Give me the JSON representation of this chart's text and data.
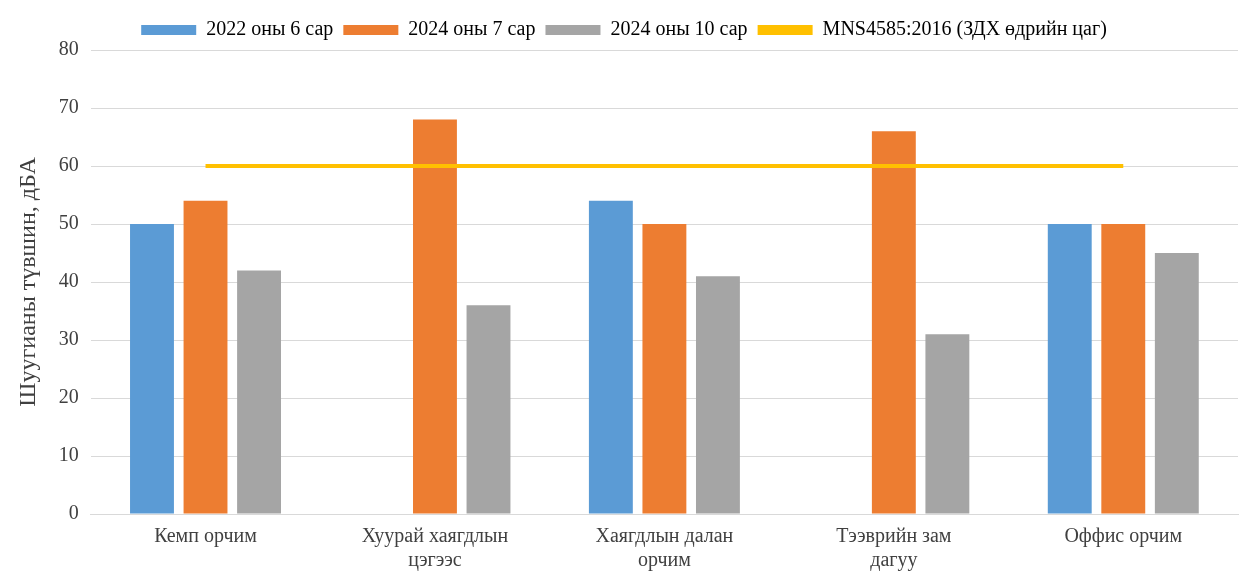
{
  "chart_data": {
    "type": "bar",
    "ylabel": "Шуугианы түвшин, дБА",
    "categories": [
      "Кемп орчим",
      "Хуурай хаягдлын цэгээс",
      "Хаягдлын далан орчим",
      "Тээврийн зам дагуу",
      "Оффис орчим"
    ],
    "series": [
      {
        "name": "2022 оны 6 сар",
        "color": "#5b9bd5",
        "values": [
          50,
          null,
          54,
          null,
          50
        ]
      },
      {
        "name": "2024 оны 7 сар",
        "color": "#ed7d31",
        "values": [
          54,
          68,
          50,
          66,
          50
        ]
      },
      {
        "name": "2024 оны 10 сар",
        "color": "#a5a5a5",
        "values": [
          42,
          36,
          41,
          31,
          45
        ]
      },
      {
        "name": "MNS4585:2016 (ЗДХ өдрийн цаг)",
        "type": "line",
        "color": "#ffc000",
        "values": [
          60,
          60,
          60,
          60,
          60
        ]
      }
    ],
    "ylim": [
      0,
      80
    ],
    "yticks": [
      0,
      10,
      20,
      30,
      40,
      50,
      60,
      70,
      80
    ],
    "grid": "y",
    "legend": "top",
    "marker": "none"
  }
}
